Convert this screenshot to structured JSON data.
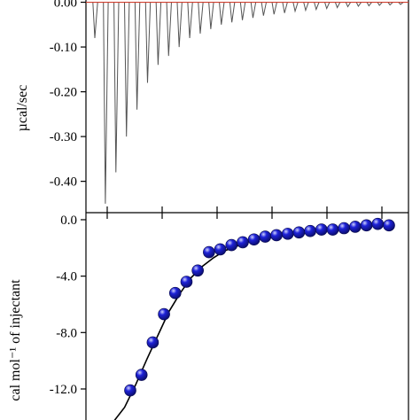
{
  "chart_data": [
    {
      "type": "line",
      "panel": "top",
      "ylabel": "µcal/sec",
      "ylim": [
        -0.47,
        0.005
      ],
      "yticks": [
        "0.00",
        "-0.10",
        "-0.20",
        "-0.30",
        "-0.40"
      ],
      "ytick_values": [
        0.0,
        -0.1,
        -0.2,
        -0.3,
        -0.4
      ],
      "baseline_color": "#d04030",
      "trace_color": "#555555",
      "peaks": {
        "values": [
          -0.08,
          -0.45,
          -0.38,
          -0.3,
          -0.24,
          -0.18,
          -0.14,
          -0.12,
          -0.1,
          -0.08,
          -0.07,
          -0.06,
          -0.05,
          -0.045,
          -0.04,
          -0.035,
          -0.03,
          -0.027,
          -0.024,
          -0.02,
          -0.018,
          -0.016,
          -0.014,
          -0.012,
          -0.01,
          -0.009,
          -0.008,
          -0.007,
          -0.006,
          -0.005
        ]
      },
      "grid": false
    },
    {
      "type": "scatter",
      "panel": "bottom",
      "ylabel": "cal mol⁻¹ of injectant",
      "ylim": [
        -14.2,
        0.5
      ],
      "yticks": [
        "0.0",
        "-4.0",
        "-8.0",
        "-12.0"
      ],
      "ytick_values": [
        0.0,
        -4.0,
        -8.0,
        -12.0
      ],
      "marker_color": "#1e22d8",
      "fit_color": "#000000",
      "points": {
        "y": [
          -12.1,
          -11.0,
          -8.7,
          -6.7,
          -5.2,
          -4.4,
          -3.6,
          -2.3,
          -2.1,
          -1.8,
          -1.6,
          -1.4,
          -1.2,
          -1.1,
          -1.0,
          -0.9,
          -0.8,
          -0.7,
          -0.7,
          -0.6,
          -0.5,
          -0.4,
          -0.3,
          -0.4
        ]
      },
      "fit": {
        "y": [
          -14.8,
          -13.3,
          -11.7,
          -9.9,
          -8.2,
          -6.5,
          -5.2,
          -4.1,
          -3.3,
          -2.7,
          -2.2,
          -1.9,
          -1.6,
          -1.4,
          -1.2,
          -1.1,
          -0.95,
          -0.85,
          -0.75,
          -0.65,
          -0.55,
          -0.48,
          -0.42,
          -0.38,
          -0.35,
          -0.33
        ]
      },
      "grid": false
    }
  ]
}
